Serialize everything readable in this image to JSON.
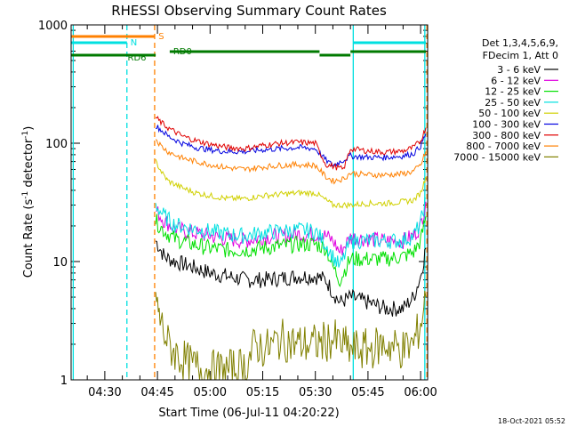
{
  "chart_data": {
    "type": "line",
    "title": "RHESSI Observing Summary Count Rates",
    "xlabel": "Start Time (06-Jul-11 04:20:22)",
    "ylabel_parts": {
      "pre": "Count Rate (s",
      "sup1": "-1",
      "mid": " detector",
      "sup2": "-1",
      "post": ")"
    },
    "yscale": "log",
    "ylim": [
      1,
      1000
    ],
    "xlim_minutes": [
      260.4,
      362
    ],
    "x_ticks": [
      {
        "min": 270,
        "label": "04:30"
      },
      {
        "min": 285,
        "label": "04:45"
      },
      {
        "min": 300,
        "label": "05:00"
      },
      {
        "min": 315,
        "label": "05:15"
      },
      {
        "min": 330,
        "label": "05:30"
      },
      {
        "min": 345,
        "label": "05:45"
      },
      {
        "min": 360,
        "label": "06:00"
      }
    ],
    "y_ticks": [
      {
        "value": 1,
        "label": "1"
      },
      {
        "value": 10,
        "label": "10"
      },
      {
        "value": 100,
        "label": "100"
      },
      {
        "value": 1000,
        "label": "1000"
      }
    ],
    "legend_header": [
      "Det 1,3,4,5,6,9,",
      "FDecim 1, Att 0"
    ],
    "series": [
      {
        "name": "3 - 6 keV",
        "color": "#000000",
        "x": [
          284.5,
          287,
          290,
          295,
          300,
          305,
          310,
          315,
          320,
          325,
          330,
          333,
          335,
          337,
          340,
          345,
          350,
          355,
          358,
          360,
          361.5
        ],
        "y": [
          15,
          11,
          10,
          9,
          8,
          7.5,
          7,
          7,
          7.2,
          7.5,
          7.5,
          7,
          5.5,
          4.5,
          5,
          4.5,
          4,
          4,
          5,
          7.5,
          13
        ]
      },
      {
        "name": "6 - 12 keV",
        "color": "#e000e0",
        "x": [
          284.5,
          287,
          290,
          295,
          300,
          305,
          310,
          315,
          320,
          325,
          330,
          333,
          335,
          337,
          340,
          345,
          350,
          355,
          358,
          360,
          361.5
        ],
        "y": [
          27,
          22,
          19,
          17.5,
          16.5,
          15.5,
          15,
          16,
          16.5,
          17,
          17,
          16.5,
          15,
          12,
          16,
          15.5,
          15,
          15,
          16.5,
          20,
          32
        ]
      },
      {
        "name": "12 - 25 keV",
        "color": "#00e000",
        "x": [
          284.5,
          287,
          290,
          295,
          300,
          305,
          310,
          315,
          320,
          325,
          330,
          333,
          335,
          337,
          340,
          345,
          350,
          355,
          358,
          360,
          361.5
        ],
        "y": [
          22,
          18,
          15.5,
          14,
          13,
          12.5,
          12.5,
          13,
          13.5,
          14,
          14,
          13,
          9,
          7,
          10.5,
          10.5,
          10.5,
          11,
          12,
          15,
          24
        ]
      },
      {
        "name": "25 - 50 keV",
        "color": "#00e0e0",
        "x": [
          284.5,
          287,
          290,
          295,
          300,
          305,
          310,
          315,
          320,
          325,
          330,
          333,
          335,
          337,
          340,
          345,
          350,
          355,
          358,
          360,
          361.5
        ],
        "y": [
          30,
          24,
          20.5,
          19,
          18,
          17,
          16.5,
          17.5,
          18,
          18.5,
          18,
          14,
          11,
          9,
          15,
          15,
          15,
          15,
          16.5,
          21,
          34
        ]
      },
      {
        "name": "50 - 100 keV",
        "color": "#d0d000",
        "x": [
          284.5,
          286.5,
          288,
          292,
          296,
          300,
          305,
          310,
          315,
          320,
          325,
          330,
          333,
          335,
          338,
          340,
          345,
          350,
          355,
          358,
          360,
          361.5
        ],
        "y": [
          70,
          55,
          48,
          42,
          38,
          36,
          34,
          34,
          36,
          37,
          38,
          38,
          33,
          30,
          30,
          30,
          31,
          31,
          32,
          33,
          38,
          52
        ]
      },
      {
        "name": "100 - 300 keV",
        "color": "#0000e0",
        "x": [
          284.5,
          286,
          288,
          292,
          296,
          300,
          305,
          310,
          315,
          320,
          325,
          330,
          333,
          335,
          338,
          340,
          345,
          350,
          355,
          358,
          360,
          361.5
        ],
        "y": [
          140,
          130,
          115,
          100,
          92,
          88,
          85,
          85,
          88,
          90,
          92,
          90,
          72,
          65,
          72,
          78,
          76,
          76,
          78,
          82,
          95,
          120
        ]
      },
      {
        "name": "300 - 800 keV",
        "color": "#e00000",
        "x": [
          284.5,
          286,
          288,
          292,
          296,
          300,
          305,
          310,
          315,
          320,
          325,
          330,
          333,
          335,
          338,
          340,
          345,
          350,
          355,
          358,
          360,
          361.5
        ],
        "y": [
          165,
          150,
          135,
          115,
          105,
          98,
          92,
          90,
          96,
          100,
          102,
          100,
          66,
          64,
          60,
          90,
          86,
          84,
          86,
          92,
          105,
          135
        ]
      },
      {
        "name": "800 - 7000 keV",
        "color": "#ff8000",
        "x": [
          284.5,
          286,
          288,
          292,
          296,
          300,
          305,
          310,
          315,
          320,
          325,
          330,
          333,
          335,
          338,
          340,
          345,
          350,
          355,
          358,
          360,
          361.5
        ],
        "y": [
          110,
          95,
          85,
          75,
          70,
          66,
          62,
          60,
          63,
          65,
          66,
          65,
          52,
          48,
          50,
          56,
          54,
          54,
          55,
          58,
          65,
          85
        ]
      },
      {
        "name": "7000 - 15000 keV",
        "color": "#808000",
        "x": [
          284.5,
          285,
          285.5,
          286,
          287,
          288,
          290,
          292,
          295,
          300,
          305,
          310,
          313,
          316,
          320,
          325,
          330,
          335,
          340,
          345,
          350,
          355,
          358,
          360,
          361.5
        ],
        "y": [
          5,
          4,
          3.5,
          3,
          2.5,
          2,
          1.7,
          1.5,
          1.3,
          1.2,
          1.2,
          1.3,
          2,
          1.8,
          2.2,
          2,
          2,
          2.2,
          1.8,
          1.8,
          2,
          1.8,
          2,
          3,
          5
        ]
      }
    ],
    "state_bars": [
      {
        "label": "S",
        "color": "#ff8000",
        "row": 0,
        "segments": [
          [
            260.4,
            284.2
          ]
        ],
        "label_min": 285.3
      },
      {
        "label": "N",
        "color": "#00e0e0",
        "row": 1,
        "segments": [
          [
            260.4,
            276.3
          ],
          [
            340.8,
            361.5
          ]
        ],
        "label_min": 277.3
      },
      {
        "label": "RD0",
        "color": "#007a00",
        "row": 2,
        "segments": [
          [
            288.5,
            331.2
          ],
          [
            340,
            361.5
          ]
        ],
        "label_min": 289.5
      },
      {
        "label": "RD6",
        "color": "#007a00",
        "row": 3,
        "segments": [
          [
            260.4,
            284.5
          ],
          [
            331.2,
            340
          ]
        ],
        "label_min": 276.5
      }
    ],
    "vlines": [
      {
        "min": 261.0,
        "color": "#00e0e0",
        "dash": false
      },
      {
        "min": 276.3,
        "color": "#00e0e0",
        "dash": true
      },
      {
        "min": 284.2,
        "color": "#ff8000",
        "dash": true
      },
      {
        "min": 340.8,
        "color": "#00e0e0",
        "dash": false
      },
      {
        "min": 361.2,
        "color": "#00e0e0",
        "dash": false
      },
      {
        "min": 361.8,
        "color": "#ff8000",
        "dash": true
      }
    ],
    "timestamp": "18-Oct-2021 05:52"
  }
}
